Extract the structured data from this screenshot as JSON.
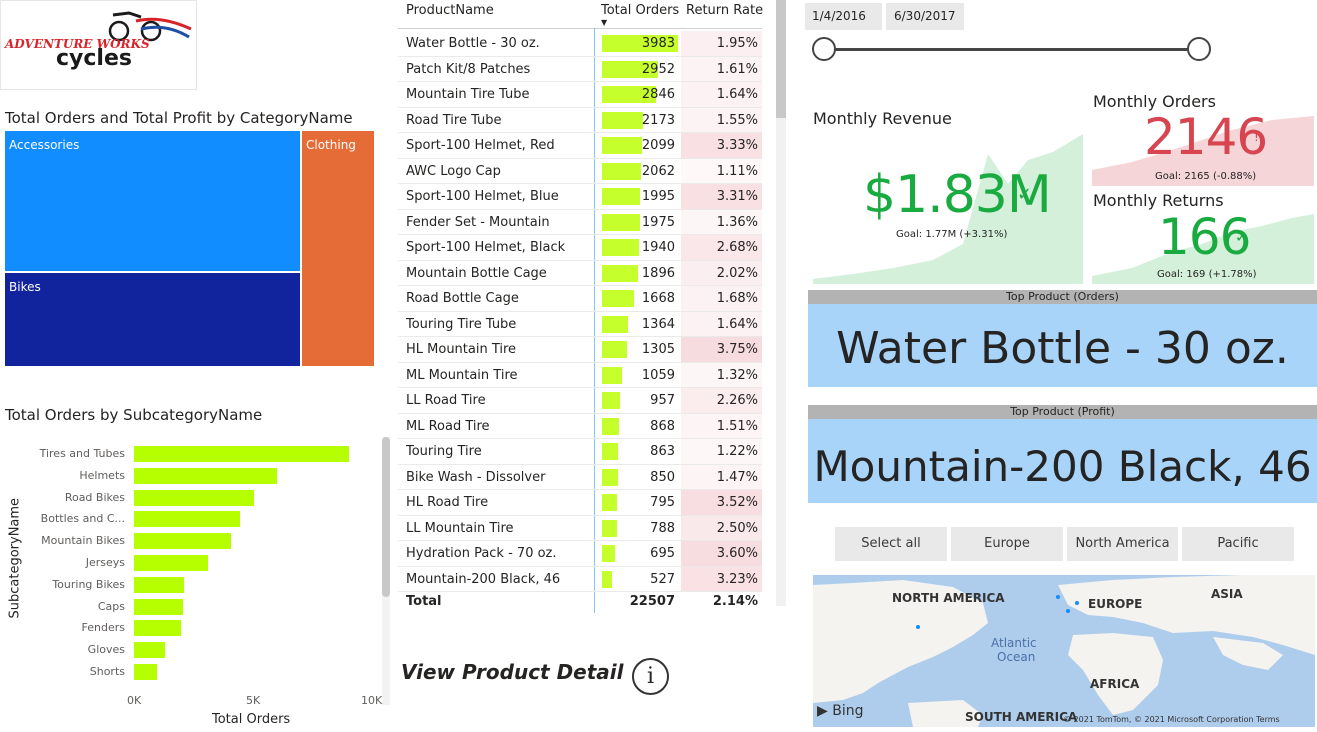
{
  "logo": {
    "line1": "ADVENTURE WORKS",
    "line2": "cycles"
  },
  "treemap": {
    "title": "Total Orders and Total Profit by CategoryName",
    "cells": [
      {
        "label": "Accessories",
        "color": "#118dff"
      },
      {
        "label": "Bikes",
        "color": "#12239e"
      },
      {
        "label": "Clothing",
        "color": "#e66c37"
      }
    ]
  },
  "bar_chart": {
    "title": "Total Orders by SubcategoryName",
    "ylabel": "SubcategoryName",
    "xlabel": "Total Orders",
    "ticks": [
      "0K",
      "5K",
      "10K"
    ]
  },
  "chart_data": {
    "type": "bar",
    "orientation": "horizontal",
    "title": "Total Orders by SubcategoryName",
    "xlabel": "Total Orders",
    "ylabel": "SubcategoryName",
    "xlim": [
      0,
      10000
    ],
    "categories": [
      "Tires and Tubes",
      "Helmets",
      "Road Bikes",
      "Bottles and C...",
      "Mountain Bikes",
      "Jerseys",
      "Touring Bikes",
      "Caps",
      "Fenders",
      "Gloves",
      "Shorts"
    ],
    "values": [
      9000,
      6000,
      5000,
      4450,
      4050,
      3100,
      2100,
      2050,
      1950,
      1300,
      950
    ],
    "color": "#b6ff00"
  },
  "table": {
    "headers": {
      "name": "ProductName",
      "orders": "Total Orders",
      "rate": "Return Rate"
    },
    "rows": [
      {
        "name": "Water Bottle - 30 oz.",
        "orders": 3983,
        "rate": "1.95%",
        "rate_num": 1.95
      },
      {
        "name": "Patch Kit/8 Patches",
        "orders": 2952,
        "rate": "1.61%",
        "rate_num": 1.61
      },
      {
        "name": "Mountain Tire Tube",
        "orders": 2846,
        "rate": "1.64%",
        "rate_num": 1.64
      },
      {
        "name": "Road Tire Tube",
        "orders": 2173,
        "rate": "1.55%",
        "rate_num": 1.55
      },
      {
        "name": "Sport-100 Helmet, Red",
        "orders": 2099,
        "rate": "3.33%",
        "rate_num": 3.33
      },
      {
        "name": "AWC Logo Cap",
        "orders": 2062,
        "rate": "1.11%",
        "rate_num": 1.11
      },
      {
        "name": "Sport-100 Helmet, Blue",
        "orders": 1995,
        "rate": "3.31%",
        "rate_num": 3.31
      },
      {
        "name": "Fender Set - Mountain",
        "orders": 1975,
        "rate": "1.36%",
        "rate_num": 1.36
      },
      {
        "name": "Sport-100 Helmet, Black",
        "orders": 1940,
        "rate": "2.68%",
        "rate_num": 2.68
      },
      {
        "name": "Mountain Bottle Cage",
        "orders": 1896,
        "rate": "2.02%",
        "rate_num": 2.02
      },
      {
        "name": "Road Bottle Cage",
        "orders": 1668,
        "rate": "1.68%",
        "rate_num": 1.68
      },
      {
        "name": "Touring Tire Tube",
        "orders": 1364,
        "rate": "1.64%",
        "rate_num": 1.64
      },
      {
        "name": "HL Mountain Tire",
        "orders": 1305,
        "rate": "3.75%",
        "rate_num": 3.75
      },
      {
        "name": "ML Mountain Tire",
        "orders": 1059,
        "rate": "1.32%",
        "rate_num": 1.32
      },
      {
        "name": "LL Road Tire",
        "orders": 957,
        "rate": "2.26%",
        "rate_num": 2.26
      },
      {
        "name": "ML Road Tire",
        "orders": 868,
        "rate": "1.51%",
        "rate_num": 1.51
      },
      {
        "name": "Touring Tire",
        "orders": 863,
        "rate": "1.22%",
        "rate_num": 1.22
      },
      {
        "name": "Bike Wash - Dissolver",
        "orders": 850,
        "rate": "1.47%",
        "rate_num": 1.47
      },
      {
        "name": "HL Road Tire",
        "orders": 795,
        "rate": "3.52%",
        "rate_num": 3.52
      },
      {
        "name": "LL Mountain Tire",
        "orders": 788,
        "rate": "2.50%",
        "rate_num": 2.5
      },
      {
        "name": "Hydration Pack - 70 oz.",
        "orders": 695,
        "rate": "3.60%",
        "rate_num": 3.6
      },
      {
        "name": "Mountain-200 Black, 46",
        "orders": 527,
        "rate": "3.23%",
        "rate_num": 3.23
      }
    ],
    "total": {
      "label": "Total",
      "orders": "22507",
      "rate": "2.14%"
    }
  },
  "view_detail": {
    "label": "View Product Detail",
    "icon": "info-icon"
  },
  "date_slicer": {
    "start": "1/4/2016",
    "end": "6/30/2017"
  },
  "kpis": {
    "revenue": {
      "title": "Monthly Revenue",
      "value": "$1.83M",
      "goal": "Goal: 1.77M (+3.31%)",
      "status": "check",
      "color": "#1aab40"
    },
    "orders": {
      "title": "Monthly Orders",
      "value": "2146",
      "goal": "Goal: 2165 (-0.88%)",
      "status": "!",
      "color": "#d64550"
    },
    "returns": {
      "title": "Monthly Returns",
      "value": "166",
      "goal": "Goal: 169 (+1.78%)",
      "status": "check",
      "color": "#1aab40"
    }
  },
  "top_orders": {
    "header": "Top Product (Orders)",
    "value": "Water Bottle - 30 oz."
  },
  "top_profit": {
    "header": "Top Product (Profit)",
    "value": "Mountain-200 Black, 46"
  },
  "region_slicer": [
    "Select all",
    "Europe",
    "North America",
    "Pacific"
  ],
  "map": {
    "labels": [
      "NORTH AMERICA",
      "EUROPE",
      "ASIA",
      "Atlantic",
      "Ocean",
      "AFRICA",
      "SOUTH AMERICA"
    ],
    "attribution": "© 2021 TomTom, © 2021 Microsoft Corporation  Terms",
    "brand": "Bing"
  }
}
